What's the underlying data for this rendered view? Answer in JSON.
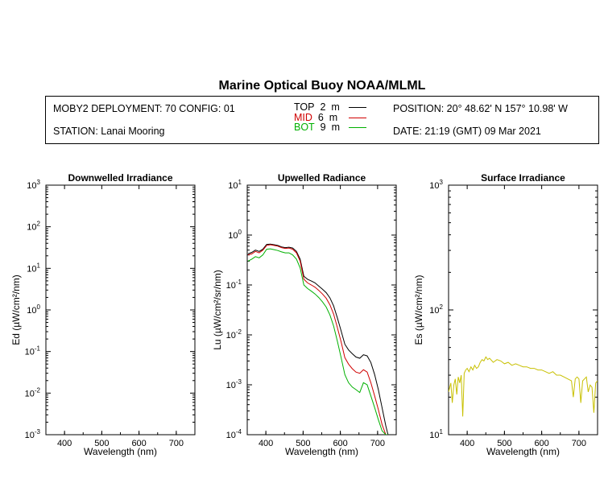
{
  "header": {
    "title": "Marine Optical Buoy NOAA/MLML",
    "deployment": "MOBY2 DEPLOYMENT: 70 CONFIG: 01",
    "station": "STATION: Lanai Mooring",
    "position": "POSITION: 20° 48.62' N   157° 10.98' W",
    "date": "DATE: 21:19 (GMT) 09 Mar 2021"
  },
  "legend": [
    {
      "label": "TOP",
      "depth": "2",
      "unit": "m",
      "color": "#000000"
    },
    {
      "label": "MID",
      "depth": "6",
      "unit": "m",
      "color": "#d00000"
    },
    {
      "label": "BOT",
      "depth": "9",
      "unit": "m",
      "color": "#00b000"
    }
  ],
  "chart_data": [
    {
      "type": "line",
      "title": "Downwelled Irradiance",
      "xlabel": "Wavelength (nm)",
      "ylabel": "Ed",
      "ylabel_unit": "(µW/cm²/nm)",
      "xlim": [
        350,
        750
      ],
      "ylim": [
        0.001,
        1000
      ],
      "yscale": "log",
      "x_ticks": [
        "400",
        "500",
        "600",
        "700"
      ],
      "y_ticks": [
        "10",
        "10",
        "10",
        "10",
        "10",
        "10",
        "10"
      ],
      "y_exponents": [
        "-3",
        "-2",
        "-1",
        "0",
        "1",
        "2",
        "3"
      ],
      "series": []
    },
    {
      "type": "line",
      "title": "Upwelled Radiance",
      "xlabel": "Wavelength (nm)",
      "ylabel": "Lu",
      "ylabel_unit": "(µW/cm²/sr/nm)",
      "xlim": [
        350,
        750
      ],
      "ylim": [
        0.0001,
        10
      ],
      "yscale": "log",
      "x_ticks": [
        "400",
        "500",
        "600",
        "700"
      ],
      "y_ticks": [
        "10",
        "10",
        "10",
        "10",
        "10",
        "10"
      ],
      "y_exponents": [
        "-4",
        "-3",
        "-2",
        "-1",
        "0",
        "1"
      ],
      "series": [
        {
          "name": "TOP",
          "color": "#000000",
          "x": [
            352,
            362,
            372,
            382,
            392,
            402,
            412,
            422,
            432,
            442,
            452,
            462,
            472,
            482,
            492,
            502,
            512,
            522,
            532,
            542,
            552,
            562,
            572,
            582,
            592,
            602,
            612,
            622,
            632,
            642,
            652,
            662,
            672,
            682,
            692,
            702,
            712,
            722,
            728
          ],
          "y": [
            0.42,
            0.45,
            0.5,
            0.47,
            0.52,
            0.65,
            0.66,
            0.64,
            0.62,
            0.58,
            0.56,
            0.57,
            0.55,
            0.47,
            0.33,
            0.15,
            0.13,
            0.12,
            0.11,
            0.095,
            0.082,
            0.07,
            0.055,
            0.038,
            0.022,
            0.012,
            0.0065,
            0.005,
            0.0042,
            0.0036,
            0.0034,
            0.004,
            0.0038,
            0.0028,
            0.0016,
            0.0008,
            0.00035,
            0.00015,
            0.0001
          ]
        },
        {
          "name": "MID",
          "color": "#d00000",
          "x": [
            352,
            362,
            372,
            382,
            392,
            402,
            412,
            422,
            432,
            442,
            452,
            462,
            472,
            482,
            492,
            502,
            512,
            522,
            532,
            542,
            552,
            562,
            572,
            582,
            592,
            602,
            612,
            622,
            632,
            642,
            652,
            662,
            672,
            682,
            692,
            702,
            712,
            722,
            728
          ],
          "y": [
            0.4,
            0.42,
            0.47,
            0.44,
            0.5,
            0.62,
            0.64,
            0.62,
            0.6,
            0.56,
            0.54,
            0.55,
            0.52,
            0.44,
            0.3,
            0.13,
            0.11,
            0.1,
            0.09,
            0.078,
            0.066,
            0.054,
            0.04,
            0.026,
            0.014,
            0.0072,
            0.0035,
            0.0026,
            0.0021,
            0.0018,
            0.0017,
            0.002,
            0.0018,
            0.0011,
            0.0006,
            0.00032,
            0.00016,
            0.0001,
            0.0001
          ]
        },
        {
          "name": "BOT",
          "color": "#00b000",
          "x": [
            352,
            362,
            372,
            382,
            392,
            402,
            412,
            422,
            432,
            442,
            452,
            462,
            472,
            482,
            492,
            502,
            512,
            522,
            532,
            542,
            552,
            562,
            572,
            582,
            592,
            602,
            612,
            622,
            632,
            642,
            652,
            662,
            672,
            682,
            692,
            702,
            712,
            722,
            728
          ],
          "y": [
            0.3,
            0.33,
            0.37,
            0.35,
            0.4,
            0.52,
            0.53,
            0.51,
            0.49,
            0.46,
            0.44,
            0.44,
            0.4,
            0.33,
            0.22,
            0.1,
            0.085,
            0.075,
            0.066,
            0.056,
            0.046,
            0.036,
            0.025,
            0.015,
            0.0075,
            0.0035,
            0.0016,
            0.0011,
            0.0009,
            0.0008,
            0.0007,
            0.0011,
            0.001,
            0.0006,
            0.00035,
            0.0002,
            0.00012,
            0.0001,
            0.0001
          ]
        }
      ]
    },
    {
      "type": "line",
      "title": "Surface Irradiance",
      "xlabel": "Wavelength (nm)",
      "ylabel": "Es",
      "ylabel_unit": "(µW/cm²/nm)",
      "xlim": [
        350,
        750
      ],
      "ylim": [
        10,
        1000
      ],
      "yscale": "log",
      "x_ticks": [
        "400",
        "500",
        "600",
        "700"
      ],
      "y_ticks": [
        "10",
        "10",
        "10"
      ],
      "y_exponents": [
        "1",
        "2",
        "3"
      ],
      "series": [
        {
          "name": "Es",
          "color": "#c8c000",
          "x": [
            350,
            356,
            360,
            364,
            368,
            372,
            376,
            380,
            384,
            388,
            392,
            396,
            400,
            405,
            410,
            415,
            420,
            425,
            430,
            435,
            440,
            445,
            450,
            455,
            460,
            470,
            480,
            490,
            500,
            510,
            520,
            530,
            540,
            550,
            560,
            570,
            580,
            590,
            600,
            610,
            620,
            630,
            640,
            650,
            660,
            670,
            680,
            685,
            690,
            695,
            700,
            705,
            710,
            715,
            720,
            725,
            730,
            735,
            740,
            745,
            750
          ],
          "y": [
            22,
            26,
            18,
            25,
            28,
            21,
            29,
            26,
            30,
            14,
            31,
            33,
            34,
            32,
            35,
            33,
            36,
            34,
            35,
            38,
            40,
            39,
            42,
            40,
            41,
            38,
            40,
            39,
            37,
            38,
            36,
            37,
            36,
            35,
            35,
            34,
            34,
            33,
            33,
            32,
            31,
            32,
            30,
            30,
            29,
            28,
            27,
            20,
            28,
            29,
            28,
            18,
            27,
            28,
            29,
            22,
            25,
            24,
            15,
            26,
            27
          ]
        }
      ]
    }
  ]
}
